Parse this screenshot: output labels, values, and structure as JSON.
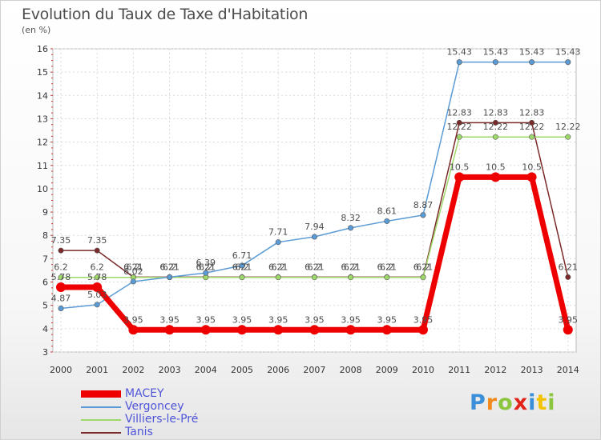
{
  "page": {
    "title": "Evolution du Taux de Taxe d'Habitation",
    "subtitle": "(en %)"
  },
  "brand": {
    "logo_text": "Proxiti",
    "letter_colors": [
      "#3a8fd8",
      "#f08a1c",
      "#8cc63e",
      "#e2231a",
      "#3a8fd8",
      "#f2c400",
      "#8cc63e"
    ]
  },
  "chart_data": {
    "type": "line",
    "title": "Evolution du Taux de Taxe d'Habitation",
    "subtitle": "(en %)",
    "xlabel": "",
    "ylabel": "",
    "x": [
      "2000",
      "2001",
      "2002",
      "2003",
      "2004",
      "2005",
      "2006",
      "2007",
      "2008",
      "2009",
      "2010",
      "2011",
      "2012",
      "2013",
      "2014"
    ],
    "ylim": [
      3,
      16
    ],
    "yticks": [
      "3",
      "4",
      "5",
      "6",
      "7",
      "8",
      "9",
      "10",
      "11",
      "12",
      "13",
      "14",
      "15",
      "16"
    ],
    "grid": true,
    "legend_position": "bottom-left",
    "series": [
      {
        "name": "Tanis",
        "color": "#7b2a2a",
        "values": [
          7.35,
          7.35,
          6.21,
          6.21,
          6.21,
          6.21,
          6.21,
          6.21,
          6.21,
          6.21,
          6.21,
          12.83,
          12.83,
          12.83,
          6.21
        ],
        "labels": [
          "7.35",
          "7.35",
          "6.21",
          "6.21",
          "6.21",
          "6.21",
          "6.21",
          "6.21",
          "6.21",
          "6.21",
          "6.21",
          "12.83",
          "12.83",
          "12.83",
          "6.21"
        ]
      },
      {
        "name": "Villiers-le-Pré",
        "color": "#9fd86a",
        "values": [
          6.2,
          6.2,
          6.2,
          6.2,
          6.2,
          6.2,
          6.2,
          6.2,
          6.2,
          6.2,
          6.2,
          12.22,
          12.22,
          12.22,
          12.22
        ],
        "labels": [
          "6.2",
          "6.2",
          "6.2",
          "6.2",
          "6.2",
          "6.2",
          "6.2",
          "6.2",
          "6.2",
          "6.2",
          "6.2",
          "12.22",
          "12.22",
          "12.22",
          "12.22"
        ]
      },
      {
        "name": "Vergoncey",
        "color": "#5b9bd5",
        "values": [
          4.87,
          5.03,
          6.02,
          6.21,
          6.39,
          6.71,
          7.71,
          7.94,
          8.32,
          8.61,
          8.87,
          15.43,
          15.43,
          15.43,
          15.43
        ],
        "labels": [
          "4.87",
          "5.03",
          "6.02",
          "6.21",
          "6.39",
          "6.71",
          "7.71",
          "7.94",
          "8.32",
          "8.61",
          "8.87",
          "15.43",
          "15.43",
          "15.43",
          "15.43"
        ]
      },
      {
        "name": "MACEY",
        "color": "#ee0000",
        "values": [
          5.78,
          5.78,
          3.95,
          3.95,
          3.95,
          3.95,
          3.95,
          3.95,
          3.95,
          3.95,
          3.95,
          10.5,
          10.5,
          10.5,
          3.95
        ],
        "labels": [
          "5.78",
          "5.78",
          "3.95",
          "3.95",
          "3.95",
          "3.95",
          "3.95",
          "3.95",
          "3.95",
          "3.95",
          "3.95",
          "10.5",
          "10.5",
          "10.5",
          "3.95"
        ]
      }
    ],
    "legend": [
      "MACEY",
      "Vergoncey",
      "Villiers-le-Pré",
      "Tanis"
    ]
  }
}
